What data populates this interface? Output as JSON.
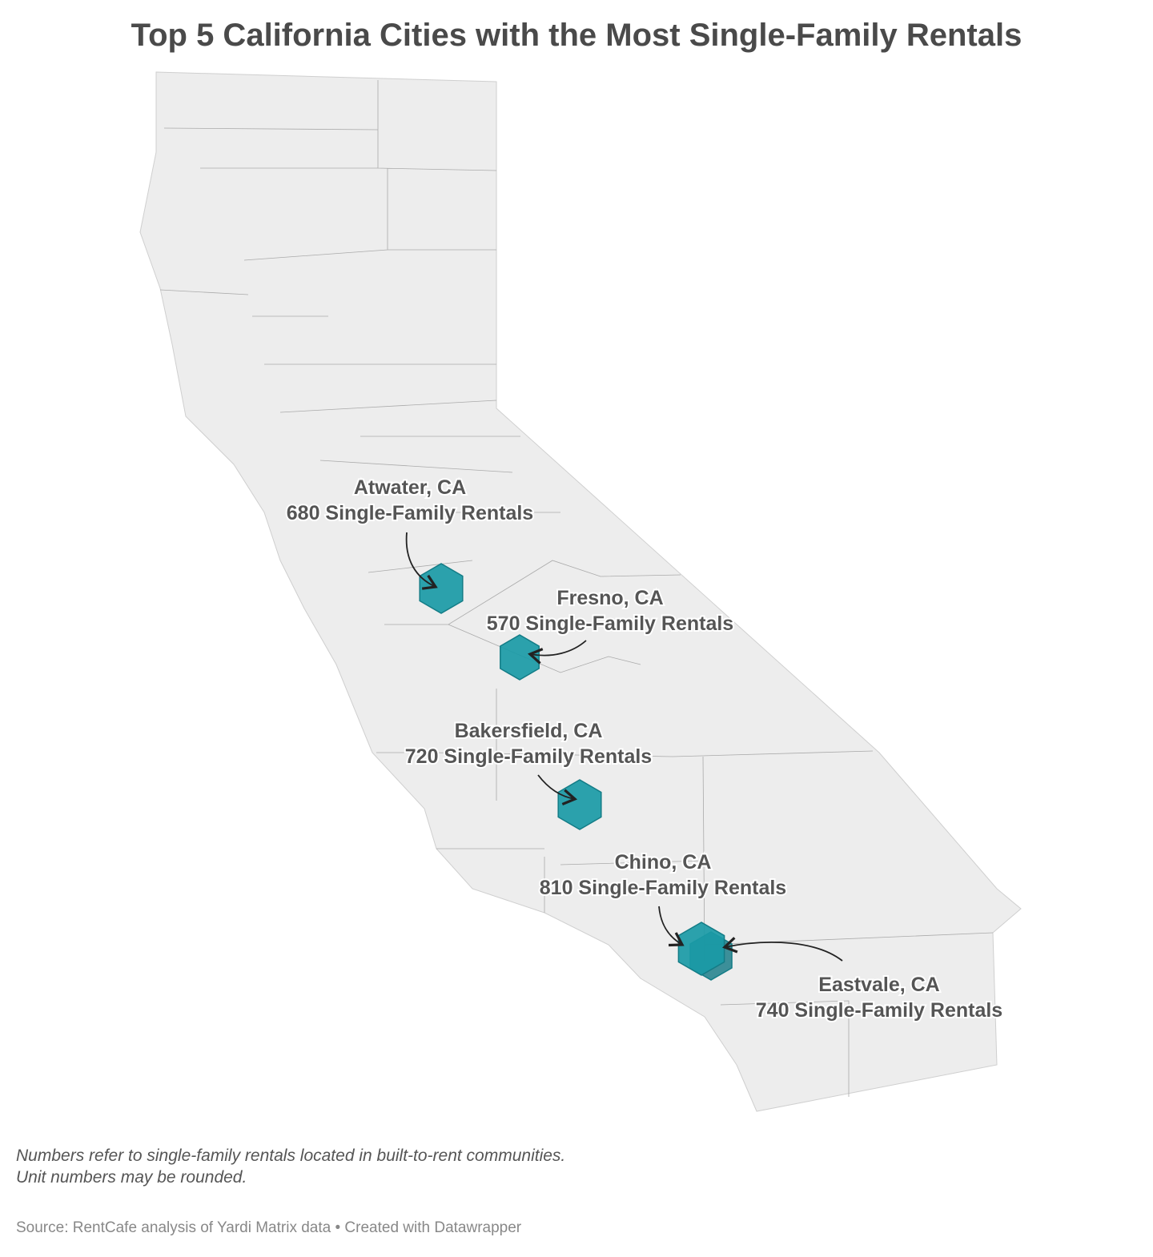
{
  "title": "Top 5 California Cities with the Most Single-Family Rentals",
  "colors": {
    "land": "#ededed",
    "border": "#a8a8a8",
    "hex": "#1a9aa6",
    "hex_dark": "#0f7783"
  },
  "markers": [
    {
      "city": "Atwater, CA",
      "label": "680 Single-Family Rentals",
      "value": 680
    },
    {
      "city": "Fresno, CA",
      "label": "570 Single-Family Rentals",
      "value": 570
    },
    {
      "city": "Bakersfield, CA",
      "label": "720 Single-Family Rentals",
      "value": 720
    },
    {
      "city": "Chino, CA",
      "label": "810 Single-Family Rentals",
      "value": 810
    },
    {
      "city": "Eastvale, CA",
      "label": "740 Single-Family Rentals",
      "value": 740
    }
  ],
  "notes": [
    "Numbers refer to single-family rentals located in built-to-rent communities.",
    "Unit numbers may be rounded."
  ],
  "source": "Source: RentCafe analysis of Yardi Matrix data • Created with Datawrapper"
}
